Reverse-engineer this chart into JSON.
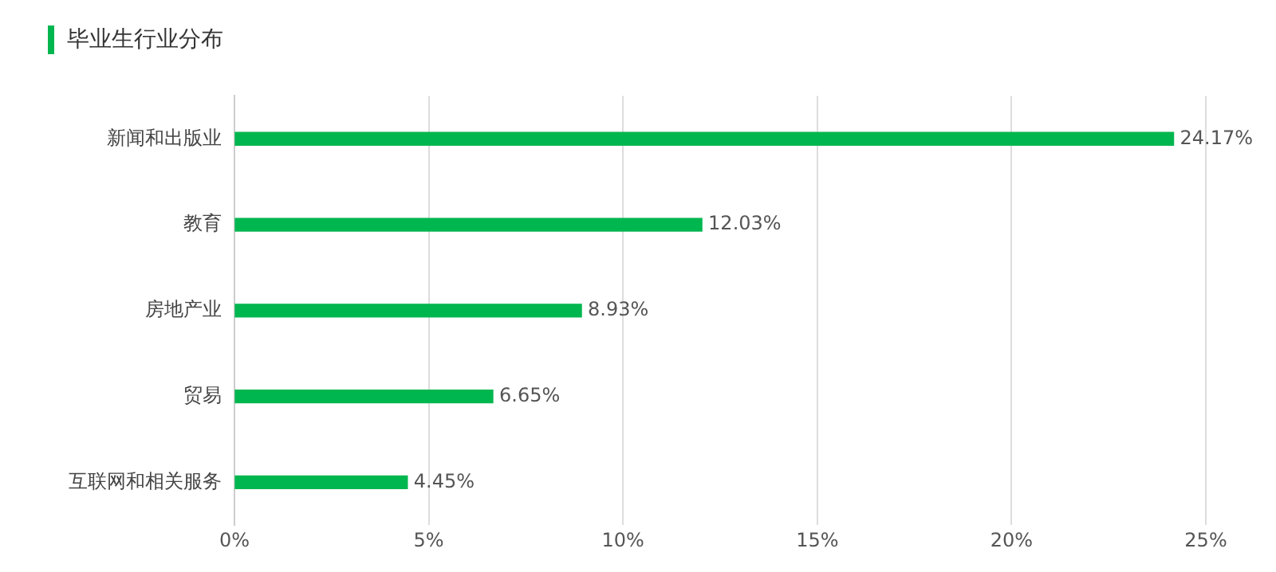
{
  "chart_data": {
    "type": "bar",
    "orientation": "horizontal",
    "title": "毕业生行业分布",
    "categories": [
      "新闻和出版业",
      "教育",
      "房地产业",
      "贸易",
      "互联网和相关服务"
    ],
    "values": [
      24.17,
      12.03,
      8.93,
      6.65,
      4.45
    ],
    "value_labels": [
      "24.17%",
      "12.03%",
      "8.93%",
      "6.65%",
      "4.45%"
    ],
    "color": "#00b64f",
    "xlim": [
      0,
      25
    ],
    "xticks": [
      {
        "value": 0,
        "label": "0%"
      },
      {
        "value": 5,
        "label": "5%"
      },
      {
        "value": 10,
        "label": "10%"
      },
      {
        "value": 15,
        "label": "15%"
      },
      {
        "value": 20,
        "label": "20%"
      },
      {
        "value": 25,
        "label": "25%"
      }
    ],
    "grid": "x",
    "legend": false
  }
}
